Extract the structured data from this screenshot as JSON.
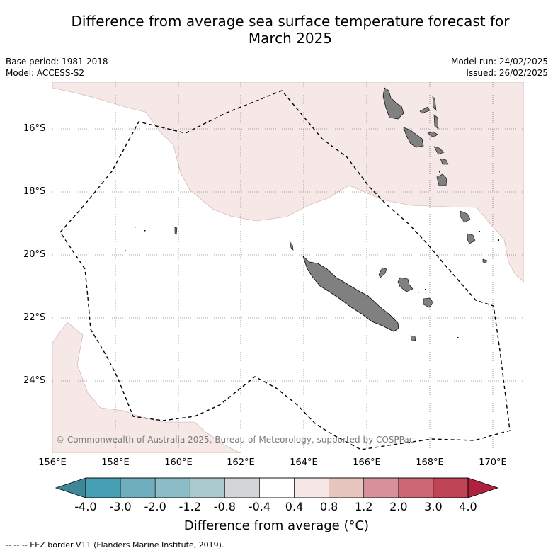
{
  "title_line1": "Difference from average sea surface temperature forecast for",
  "title_line2": "March 2025",
  "meta": {
    "base_period": "Base period: 1981-2018",
    "model": "Model: ACCESS-S2",
    "model_run": "Model run: 24/02/2025",
    "issued": "Issued: 26/02/2025"
  },
  "credit": "© Commonwealth of Australia 2025, Bureau of Meteorology, supported by COSPPac",
  "lat_labels": [
    "16°S",
    "18°S",
    "20°S",
    "22°S",
    "24°S"
  ],
  "lon_labels": [
    "156°E",
    "158°E",
    "160°E",
    "162°E",
    "164°E",
    "166°E",
    "168°E",
    "170°E"
  ],
  "colorbar": {
    "ticks": [
      "-4.0",
      "-3.0",
      "-2.0",
      "-1.2",
      "-0.8",
      "-0.4",
      "0.4",
      "0.8",
      "1.2",
      "2.0",
      "3.0",
      "4.0"
    ],
    "colors": [
      "#44a0b2",
      "#6eaebd",
      "#8cbcc6",
      "#a9c9cd",
      "#d3d6d6",
      "#ffffff",
      "#f5e8e6",
      "#e8c6c0",
      "#d6919a",
      "#cc6875",
      "#bf4456"
    ],
    "under_color": "#3d8797",
    "over_color": "#b0213f",
    "label": "Difference from average (°C)"
  },
  "field_colors": {
    "anomaly_0_4_to_0_8": "#f5e8e6",
    "land": "#808080"
  },
  "eez_note": "--  --  -- EEZ border V11 (Flanders Marine Institute, 2019)."
}
